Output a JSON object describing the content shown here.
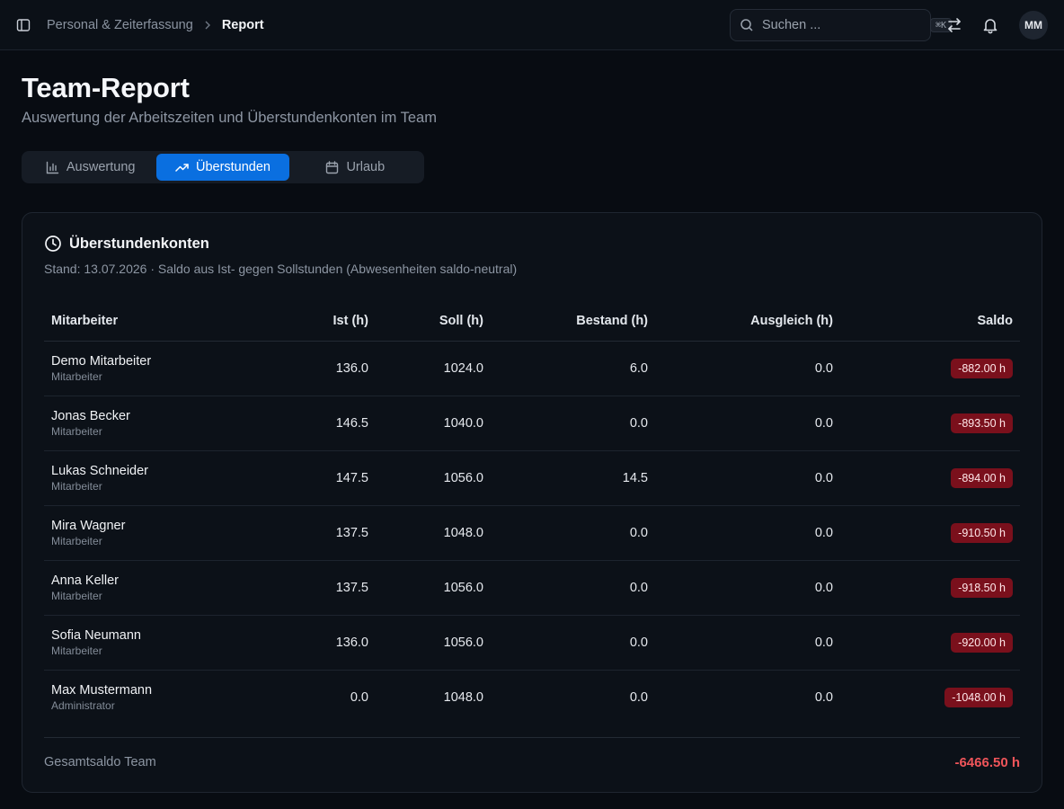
{
  "breadcrumb": {
    "parent": "Personal & Zeiterfassung",
    "current": "Report"
  },
  "search": {
    "placeholder": "Suchen ...",
    "shortcut": "⌘K"
  },
  "user": {
    "initials": "MM"
  },
  "page": {
    "title": "Team-Report",
    "subtitle": "Auswertung der Arbeitszeiten und Überstundenkonten im Team"
  },
  "tabs": [
    {
      "label": "Auswertung",
      "icon": "bar-chart-icon",
      "active": false
    },
    {
      "label": "Überstunden",
      "icon": "trending-up-icon",
      "active": true
    },
    {
      "label": "Urlaub",
      "icon": "calendar-icon",
      "active": false
    }
  ],
  "card": {
    "title": "Überstundenkonten",
    "subtitle": "Stand: 13.07.2026 · Saldo aus Ist- gegen Sollstunden (Abwesenheiten saldo-neutral)",
    "columns": [
      "Mitarbeiter",
      "Ist (h)",
      "Soll (h)",
      "Bestand (h)",
      "Ausgleich (h)",
      "Saldo"
    ],
    "rows": [
      {
        "name": "Demo Mitarbeiter",
        "role": "Mitarbeiter",
        "ist": "136.0",
        "soll": "1024.0",
        "bestand": "6.0",
        "ausgleich": "0.0",
        "saldo": "-882.00 h"
      },
      {
        "name": "Jonas Becker",
        "role": "Mitarbeiter",
        "ist": "146.5",
        "soll": "1040.0",
        "bestand": "0.0",
        "ausgleich": "0.0",
        "saldo": "-893.50 h"
      },
      {
        "name": "Lukas Schneider",
        "role": "Mitarbeiter",
        "ist": "147.5",
        "soll": "1056.0",
        "bestand": "14.5",
        "ausgleich": "0.0",
        "saldo": "-894.00 h"
      },
      {
        "name": "Mira Wagner",
        "role": "Mitarbeiter",
        "ist": "137.5",
        "soll": "1048.0",
        "bestand": "0.0",
        "ausgleich": "0.0",
        "saldo": "-910.50 h"
      },
      {
        "name": "Anna Keller",
        "role": "Mitarbeiter",
        "ist": "137.5",
        "soll": "1056.0",
        "bestand": "0.0",
        "ausgleich": "0.0",
        "saldo": "-918.50 h"
      },
      {
        "name": "Sofia Neumann",
        "role": "Mitarbeiter",
        "ist": "136.0",
        "soll": "1056.0",
        "bestand": "0.0",
        "ausgleich": "0.0",
        "saldo": "-920.00 h"
      },
      {
        "name": "Max Mustermann",
        "role": "Administrator",
        "ist": "0.0",
        "soll": "1048.0",
        "bestand": "0.0",
        "ausgleich": "0.0",
        "saldo": "-1048.00 h"
      }
    ],
    "total": {
      "label": "Gesamtsaldo Team",
      "value": "-6466.50 h"
    }
  },
  "colors": {
    "accent": "#0a6fe0",
    "negative_badge": "#7a101c",
    "negative_text": "#f0555a"
  }
}
